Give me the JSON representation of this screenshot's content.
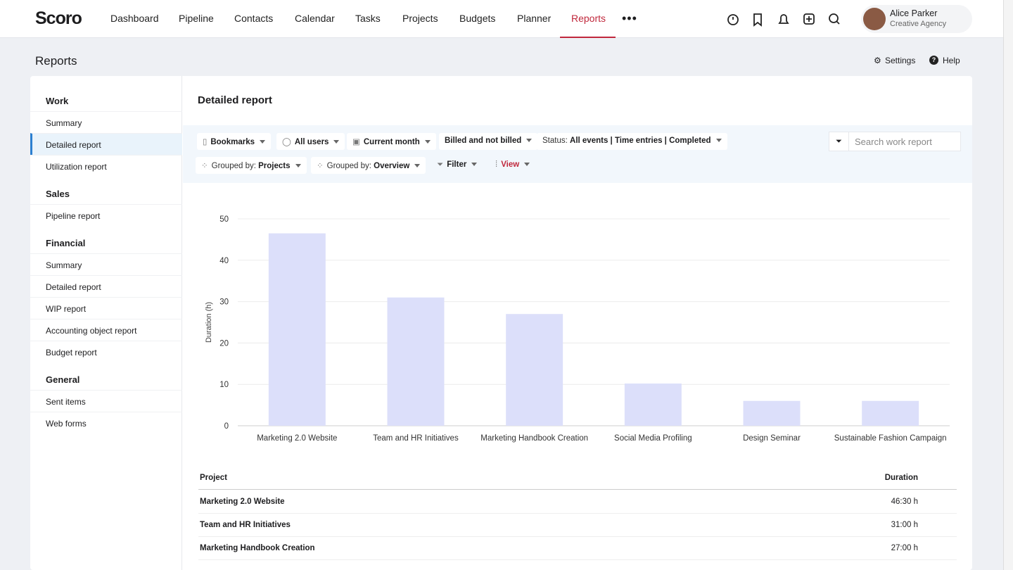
{
  "nav": {
    "brand": "Scoro",
    "items": [
      "Dashboard",
      "Pipeline",
      "Contacts",
      "Calendar",
      "Tasks",
      "Projects",
      "Budgets",
      "Planner",
      "Reports"
    ],
    "user": {
      "name": "Alice Parker",
      "company": "Creative Agency"
    }
  },
  "page": {
    "title": "Reports",
    "settings": "Settings",
    "help": "Help"
  },
  "sidebar": [
    {
      "title": "Work",
      "items": [
        "Summary",
        "Detailed report",
        "Utilization report"
      ]
    },
    {
      "title": "Sales",
      "items": [
        "Pipeline report"
      ]
    },
    {
      "title": "Financial",
      "items": [
        "Summary",
        "Detailed report",
        "WIP report",
        "Accounting object report",
        "Budget report"
      ]
    },
    {
      "title": "General",
      "items": [
        "Sent items",
        "Web forms"
      ]
    }
  ],
  "report": {
    "title": "Detailed report",
    "search_placeholder": "Search work report",
    "filters": [
      [
        {
          "label": "Bookmarks"
        },
        {
          "label": "All users"
        },
        {
          "label": "Current month"
        },
        {
          "label": "Billed and not billed"
        },
        {
          "prefix": "Status:",
          "label": "All events | Time entries | Completed"
        }
      ],
      [
        {
          "prefix": "Grouped by:",
          "label": "Projects"
        },
        {
          "prefix": "Grouped by:",
          "label": "Overview"
        },
        {
          "label": "Filter"
        },
        {
          "label": "View"
        }
      ]
    ]
  },
  "chart_data": {
    "type": "bar",
    "y_label": "Duration (h)",
    "categories": [
      "Marketing 2.0 Website",
      "Team and HR Initiatives",
      "Marketing Handbook Creation",
      "Social Media Profiling",
      "Design Seminar",
      "Sustainable Fashion Campaign"
    ],
    "values": [
      46.5,
      31,
      27,
      10.2,
      6,
      6
    ],
    "color": "#dcdffa",
    "ylim": [
      0,
      50
    ],
    "yticks": [
      0,
      10,
      20,
      30,
      40,
      50
    ],
    "grid": true
  },
  "table": {
    "columns": [
      "Project",
      "Duration"
    ],
    "rows": [
      [
        "Marketing 2.0 Website",
        "46:30 h"
      ],
      [
        "Team and HR Initiatives",
        "31:00 h"
      ],
      [
        "Marketing Handbook Creation",
        "27:00 h"
      ]
    ]
  }
}
